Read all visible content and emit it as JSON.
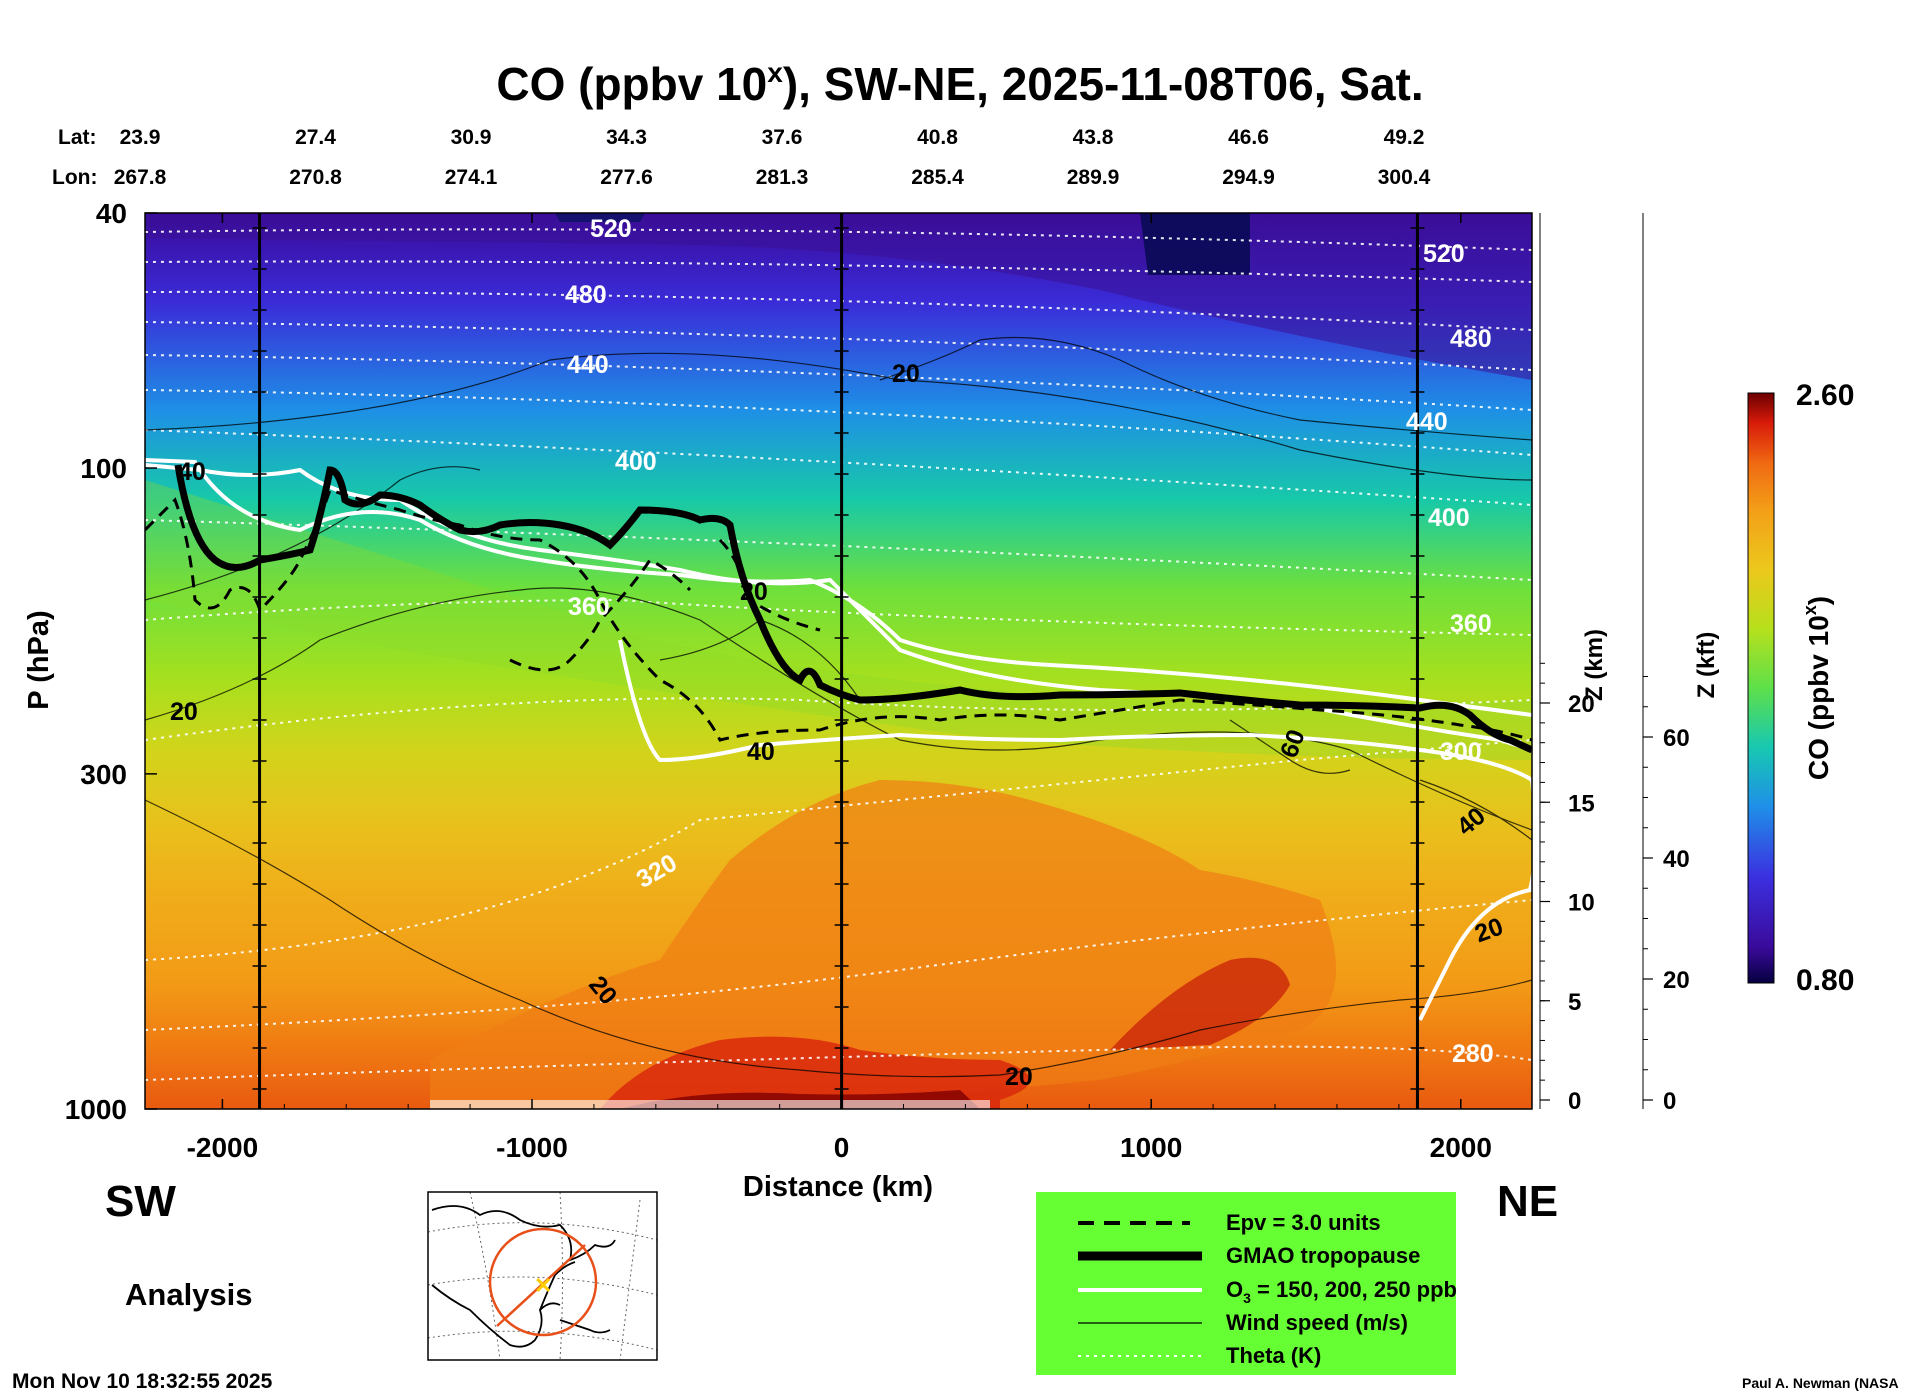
{
  "chart_data": {
    "type": "heatmap",
    "title": "CO (ppbv 10",
    "title_sup": "x",
    "title_rest": "), SW-NE, 2025-11-08T06, Sat.",
    "lat_label": "Lat:",
    "lon_label": "Lon:",
    "lat": [
      "23.9",
      "27.4",
      "30.9",
      "34.3",
      "37.6",
      "40.8",
      "43.8",
      "46.6",
      "49.2"
    ],
    "lon": [
      "267.8",
      "270.8",
      "274.1",
      "277.6",
      "281.3",
      "285.4",
      "289.9",
      "294.9",
      "300.4"
    ],
    "xlabel": "Distance (km)",
    "xlim": [
      -2250,
      2230
    ],
    "xticks": [
      -2000,
      -1000,
      0,
      1000,
      2000
    ],
    "xtick_labels": [
      "-2000",
      "-1000",
      "0",
      "1000",
      "2000"
    ],
    "ylabel": "P (hPa)",
    "ylim": [
      1000,
      40
    ],
    "yscale": "log",
    "yticks": [
      1000,
      300,
      100,
      40
    ],
    "ytick_labels": [
      "1000",
      "300",
      "100",
      "40"
    ],
    "z_km_label": "Z (km)",
    "z_km_ticks": [
      0,
      5,
      10,
      15,
      20
    ],
    "z_km_labels": [
      "0",
      "5",
      "10",
      "15",
      "20"
    ],
    "z_kft_label": "Z (kft)",
    "z_kft_ticks": [
      0,
      20,
      40,
      60
    ],
    "z_kft_labels": [
      "0",
      "20",
      "40",
      "60"
    ],
    "colorbar": {
      "label": "CO (ppbv 10",
      "label_sup": "x",
      "label_end": ")",
      "min": 0.8,
      "max": 2.6,
      "min_label": "0.80",
      "max_label": "2.60"
    },
    "theta_labels": [
      "520",
      "480",
      "440",
      "400",
      "360",
      "320",
      "280",
      "520",
      "480",
      "440",
      "400",
      "360",
      "300"
    ],
    "wind_labels": [
      "20",
      "20",
      "40",
      "20",
      "20",
      "40",
      "60",
      "20",
      "40",
      "20"
    ],
    "legend": [
      {
        "label": "Epv = 3.0 units",
        "style": "dashed"
      },
      {
        "label": "GMAO tropopause",
        "style": "thick"
      },
      {
        "label": "O",
        "sub": "3",
        "rest": " = 150, 200, 250 ppb",
        "style": "white"
      },
      {
        "label": "Wind speed (m/s)",
        "style": "thin"
      },
      {
        "label": "Theta (K)",
        "style": "dotted"
      }
    ],
    "legend_bg": "#66ff33",
    "left_label": "SW",
    "right_label": "NE",
    "analysis_label": "Analysis",
    "timestamp": "Mon Nov 10 18:32:55 2025",
    "credit": "Paul A. Newman (NASA"
  }
}
